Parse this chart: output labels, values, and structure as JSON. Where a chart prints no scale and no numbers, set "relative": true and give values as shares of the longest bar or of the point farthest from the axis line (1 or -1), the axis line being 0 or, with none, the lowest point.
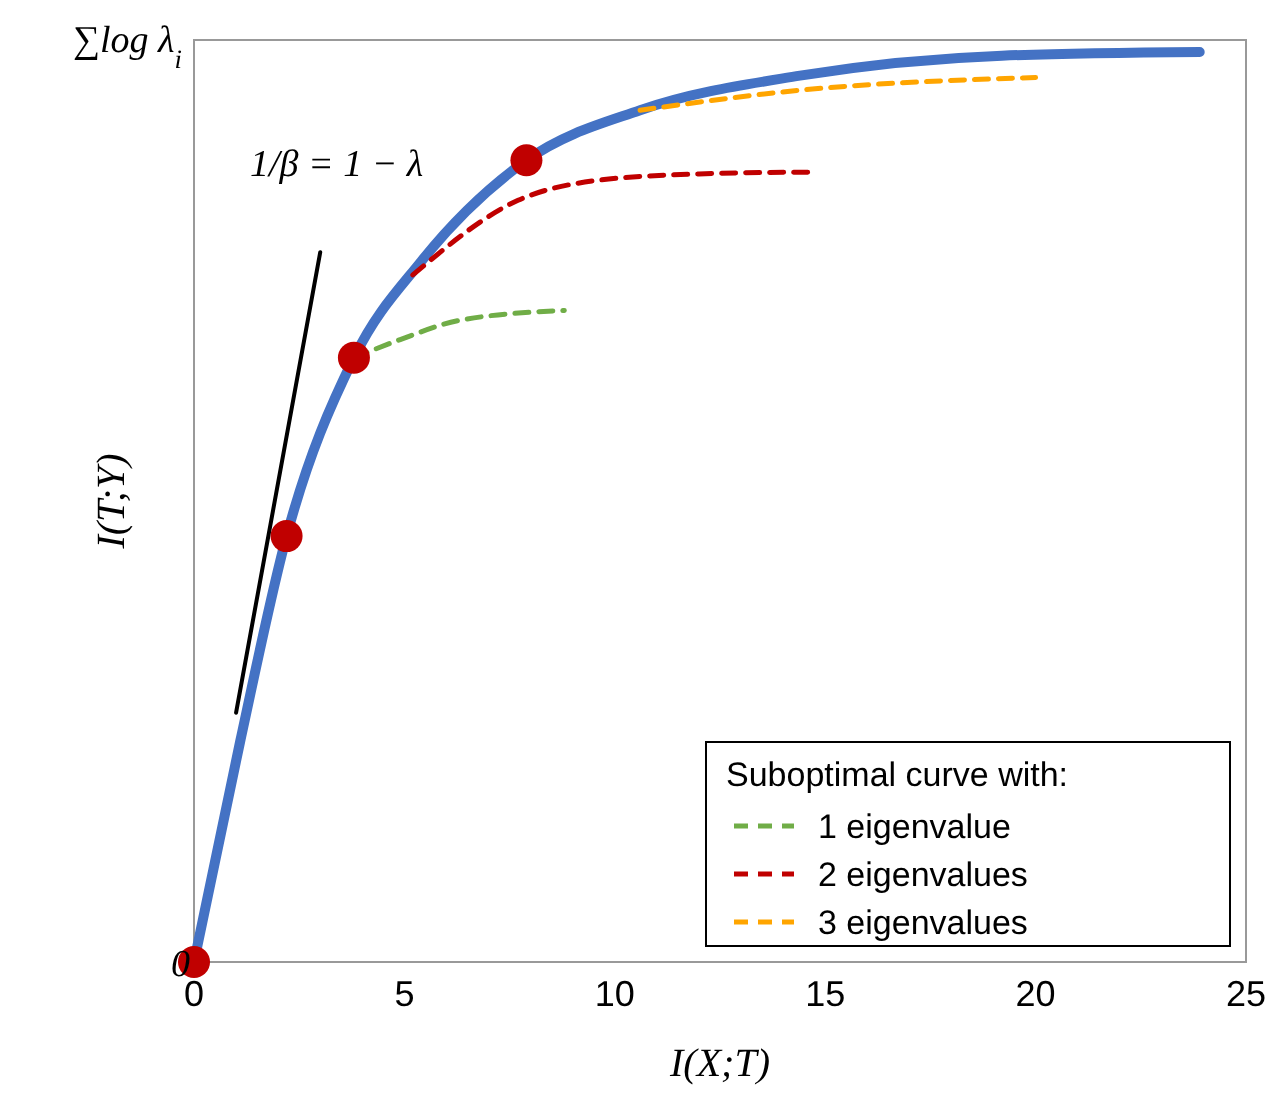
{
  "chart_data": {
    "type": "line",
    "relative": true,
    "xlabel": "I(X;T)",
    "ylabel": "I(T;Y)",
    "legend_title": "Suboptimal curve with:",
    "legend": "bottom right",
    "grid": false,
    "xlim": [
      0,
      25
    ],
    "xticks": [
      0,
      5,
      10,
      15,
      20,
      25
    ],
    "annotations": [
      "1/β = 1 − λ",
      "0",
      "∑log λ$_{i}$"
    ],
    "series": [
      {
        "color": "#4472c4",
        "line_style": "solid",
        "x": [
          0,
          1.1,
          2.2,
          3.8,
          5.4,
          7.9,
          10.6,
          14.4,
          19.2,
          23.9
        ],
        "values": [
          0,
          0.243,
          0.468,
          0.664,
          0.77,
          0.881,
          0.936,
          0.974,
          0.996,
          1
        ]
      },
      {
        "name": "1 eigenvalue",
        "color": "#70ad47",
        "line_style": "dashed",
        "x": [
          3.8,
          4.9,
          6.3,
          8.8
        ],
        "values": [
          0.664,
          0.684,
          0.705,
          0.716
        ]
      },
      {
        "name": "2 eigenvalues",
        "color": "#c00000",
        "line_style": "dashed",
        "x": [
          5.2,
          7.7,
          9.6,
          12,
          14.6
        ],
        "values": [
          0.755,
          0.837,
          0.859,
          0.866,
          0.868
        ]
      },
      {
        "name": "3 eigenvalues",
        "color": "#ffa500",
        "line_style": "dashed",
        "x": [
          10.6,
          14.4,
          20
        ],
        "values": [
          0.936,
          0.958,
          0.972
        ]
      },
      {
        "type": "line",
        "color": "#000000",
        "line_style": "solid",
        "x": [
          1,
          3
        ],
        "values": [
          0.274,
          0.78
        ]
      },
      {
        "type": "scatter",
        "color": "#c00000",
        "marker": "circle",
        "x": [
          0,
          2.2,
          3.8,
          7.9
        ],
        "values": [
          0,
          0.468,
          0.664,
          0.881
        ]
      }
    ]
  }
}
